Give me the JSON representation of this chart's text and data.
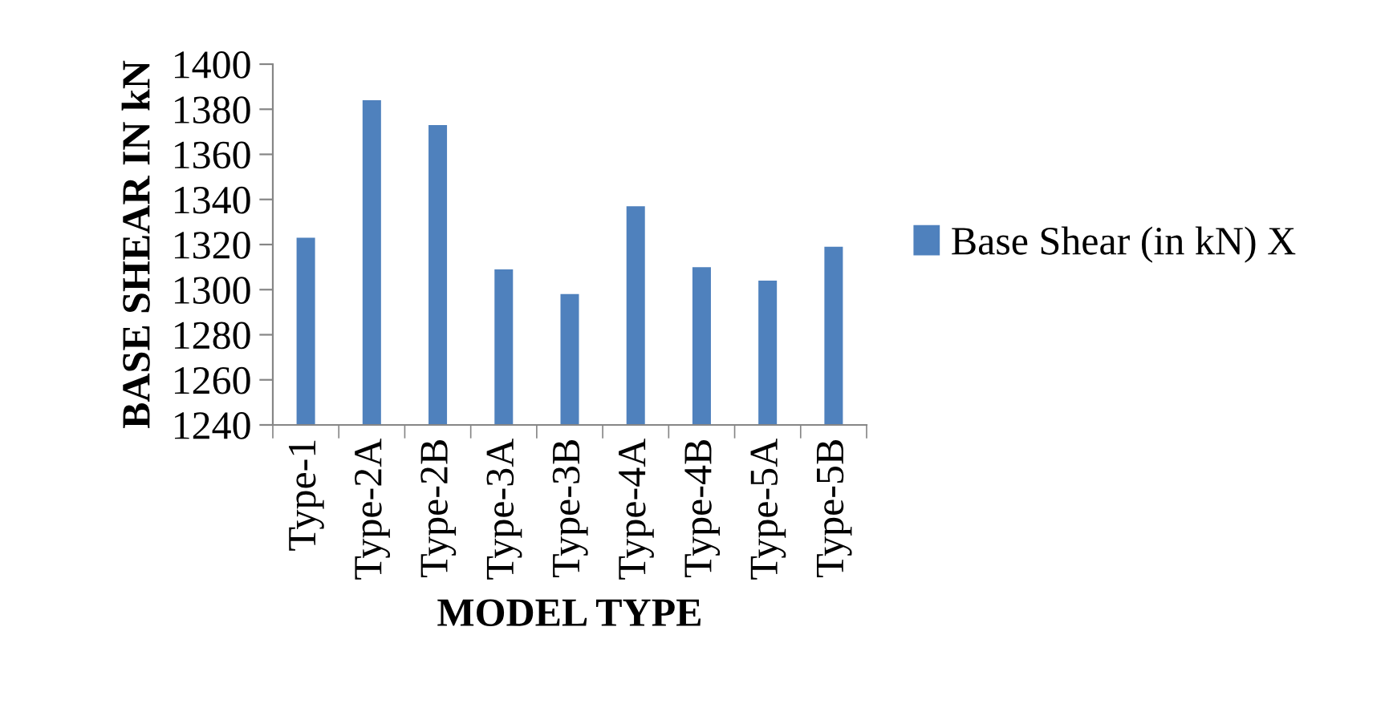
{
  "chart_data": {
    "type": "bar",
    "xlabel": "MODEL TYPE",
    "ylabel": "BASE SHEAR IN kN",
    "categories": [
      "Type-1",
      "Type-2A",
      "Type-2B",
      "Type-3A",
      "Type-3B",
      "Type-4A",
      "Type-4B",
      "Type-5A",
      "Type-5B"
    ],
    "series": [
      {
        "name": "Base Shear (in kN) X",
        "color": "#4f81bd",
        "values": [
          1323,
          1384,
          1373,
          1309,
          1298,
          1337,
          1310,
          1304,
          1319
        ]
      }
    ],
    "ylim": [
      1240,
      1400
    ],
    "yticks": [
      1240,
      1260,
      1280,
      1300,
      1320,
      1340,
      1360,
      1380,
      1400
    ],
    "grid": false,
    "legend": "right"
  }
}
